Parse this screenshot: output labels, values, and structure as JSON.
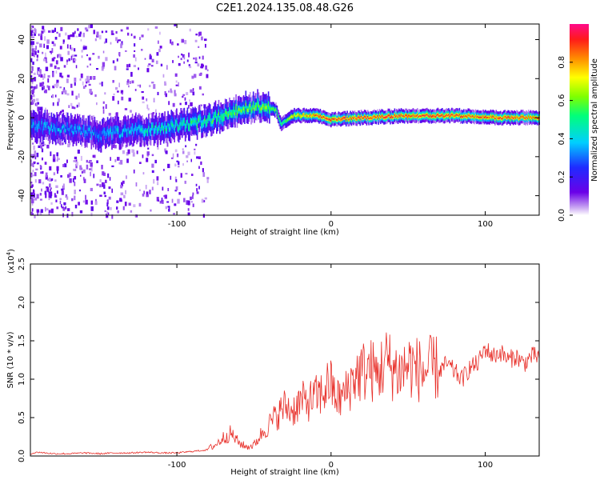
{
  "figure": {
    "title": "C2E1.2024.135.08.48.G26"
  },
  "colors": {
    "line": "#e8302a",
    "axis": "#000000",
    "background": "#ffffff"
  },
  "chart_data": [
    {
      "type": "heatmap",
      "title": "C2E1.2024.135.08.48.G26",
      "xlabel": "Height of straight line (km)",
      "ylabel": "Frequency (Hz)",
      "xlim": [
        -195,
        135
      ],
      "ylim": [
        -50,
        48
      ],
      "xticks": [
        -100,
        0,
        100
      ],
      "yticks": [
        -40,
        -20,
        0,
        20,
        40
      ],
      "grid": false,
      "colorbar": {
        "label": "Normalized spectral amplitude",
        "range": [
          0,
          1
        ],
        "ticks": [
          0.0,
          0.2,
          0.4,
          0.6,
          0.8
        ],
        "colormap": "rainbow (purple-blue-cyan-green-yellow-orange-red-magenta)"
      },
      "ridge": {
        "description": "frequency track of the strongest spectral amplitude",
        "x": [
          -195,
          -170,
          -150,
          -130,
          -110,
          -90,
          -70,
          -55,
          -45,
          -36,
          -33,
          -25,
          -10,
          0,
          20,
          50,
          80,
          110,
          135
        ],
        "y": [
          -4,
          -6,
          -9,
          -7,
          -5,
          -3,
          1,
          5,
          6,
          4,
          -3,
          1,
          1,
          -1,
          0,
          1,
          1,
          0,
          0
        ],
        "peak_amplitude": [
          0.35,
          0.35,
          0.35,
          0.4,
          0.45,
          0.5,
          0.55,
          0.6,
          0.6,
          0.6,
          0.5,
          0.7,
          0.85,
          0.9,
          0.9,
          0.9,
          0.9,
          0.88,
          0.88
        ]
      }
    },
    {
      "type": "line",
      "title": "",
      "xlabel": "Height of straight line (km)",
      "ylabel": "SNR (10 * v/v)",
      "yscale_label": "(x10",
      "yscale_exponent": "4",
      "yscale_suffix": ")",
      "xlim": [
        -195,
        135
      ],
      "ylim": [
        0,
        2.5
      ],
      "xticks": [
        -100,
        0,
        100
      ],
      "yticks": [
        0.0,
        0.5,
        1.0,
        1.5,
        2.0,
        2.5
      ],
      "grid": false,
      "series": [
        {
          "color": "#e8302a",
          "x": [
            -195,
            -190,
            -180,
            -170,
            -160,
            -150,
            -140,
            -130,
            -120,
            -110,
            -100,
            -90,
            -80,
            -75,
            -70,
            -65,
            -60,
            -55,
            -50,
            -45,
            -40,
            -35,
            -30,
            -25,
            -20,
            -15,
            -10,
            -5,
            0,
            5,
            10,
            15,
            20,
            25,
            30,
            35,
            40,
            45,
            50,
            55,
            60,
            65,
            70,
            75,
            80,
            85,
            90,
            95,
            100,
            105,
            110,
            115,
            120,
            125,
            130,
            135
          ],
          "y": [
            0.03,
            0.05,
            0.03,
            0.03,
            0.04,
            0.03,
            0.04,
            0.04,
            0.05,
            0.04,
            0.04,
            0.06,
            0.08,
            0.12,
            0.2,
            0.25,
            0.15,
            0.1,
            0.12,
            0.25,
            0.35,
            0.45,
            0.55,
            0.5,
            0.6,
            0.6,
            0.65,
            0.7,
            0.85,
            0.7,
            0.8,
            1.0,
            1.05,
            1.1,
            1.0,
            1.2,
            1.1,
            1.05,
            1.15,
            1.1,
            1.05,
            1.1,
            1.1,
            1.2,
            1.1,
            1.0,
            1.15,
            1.2,
            1.4,
            1.3,
            1.35,
            1.25,
            1.3,
            1.2,
            1.3,
            1.3
          ]
        }
      ]
    }
  ]
}
